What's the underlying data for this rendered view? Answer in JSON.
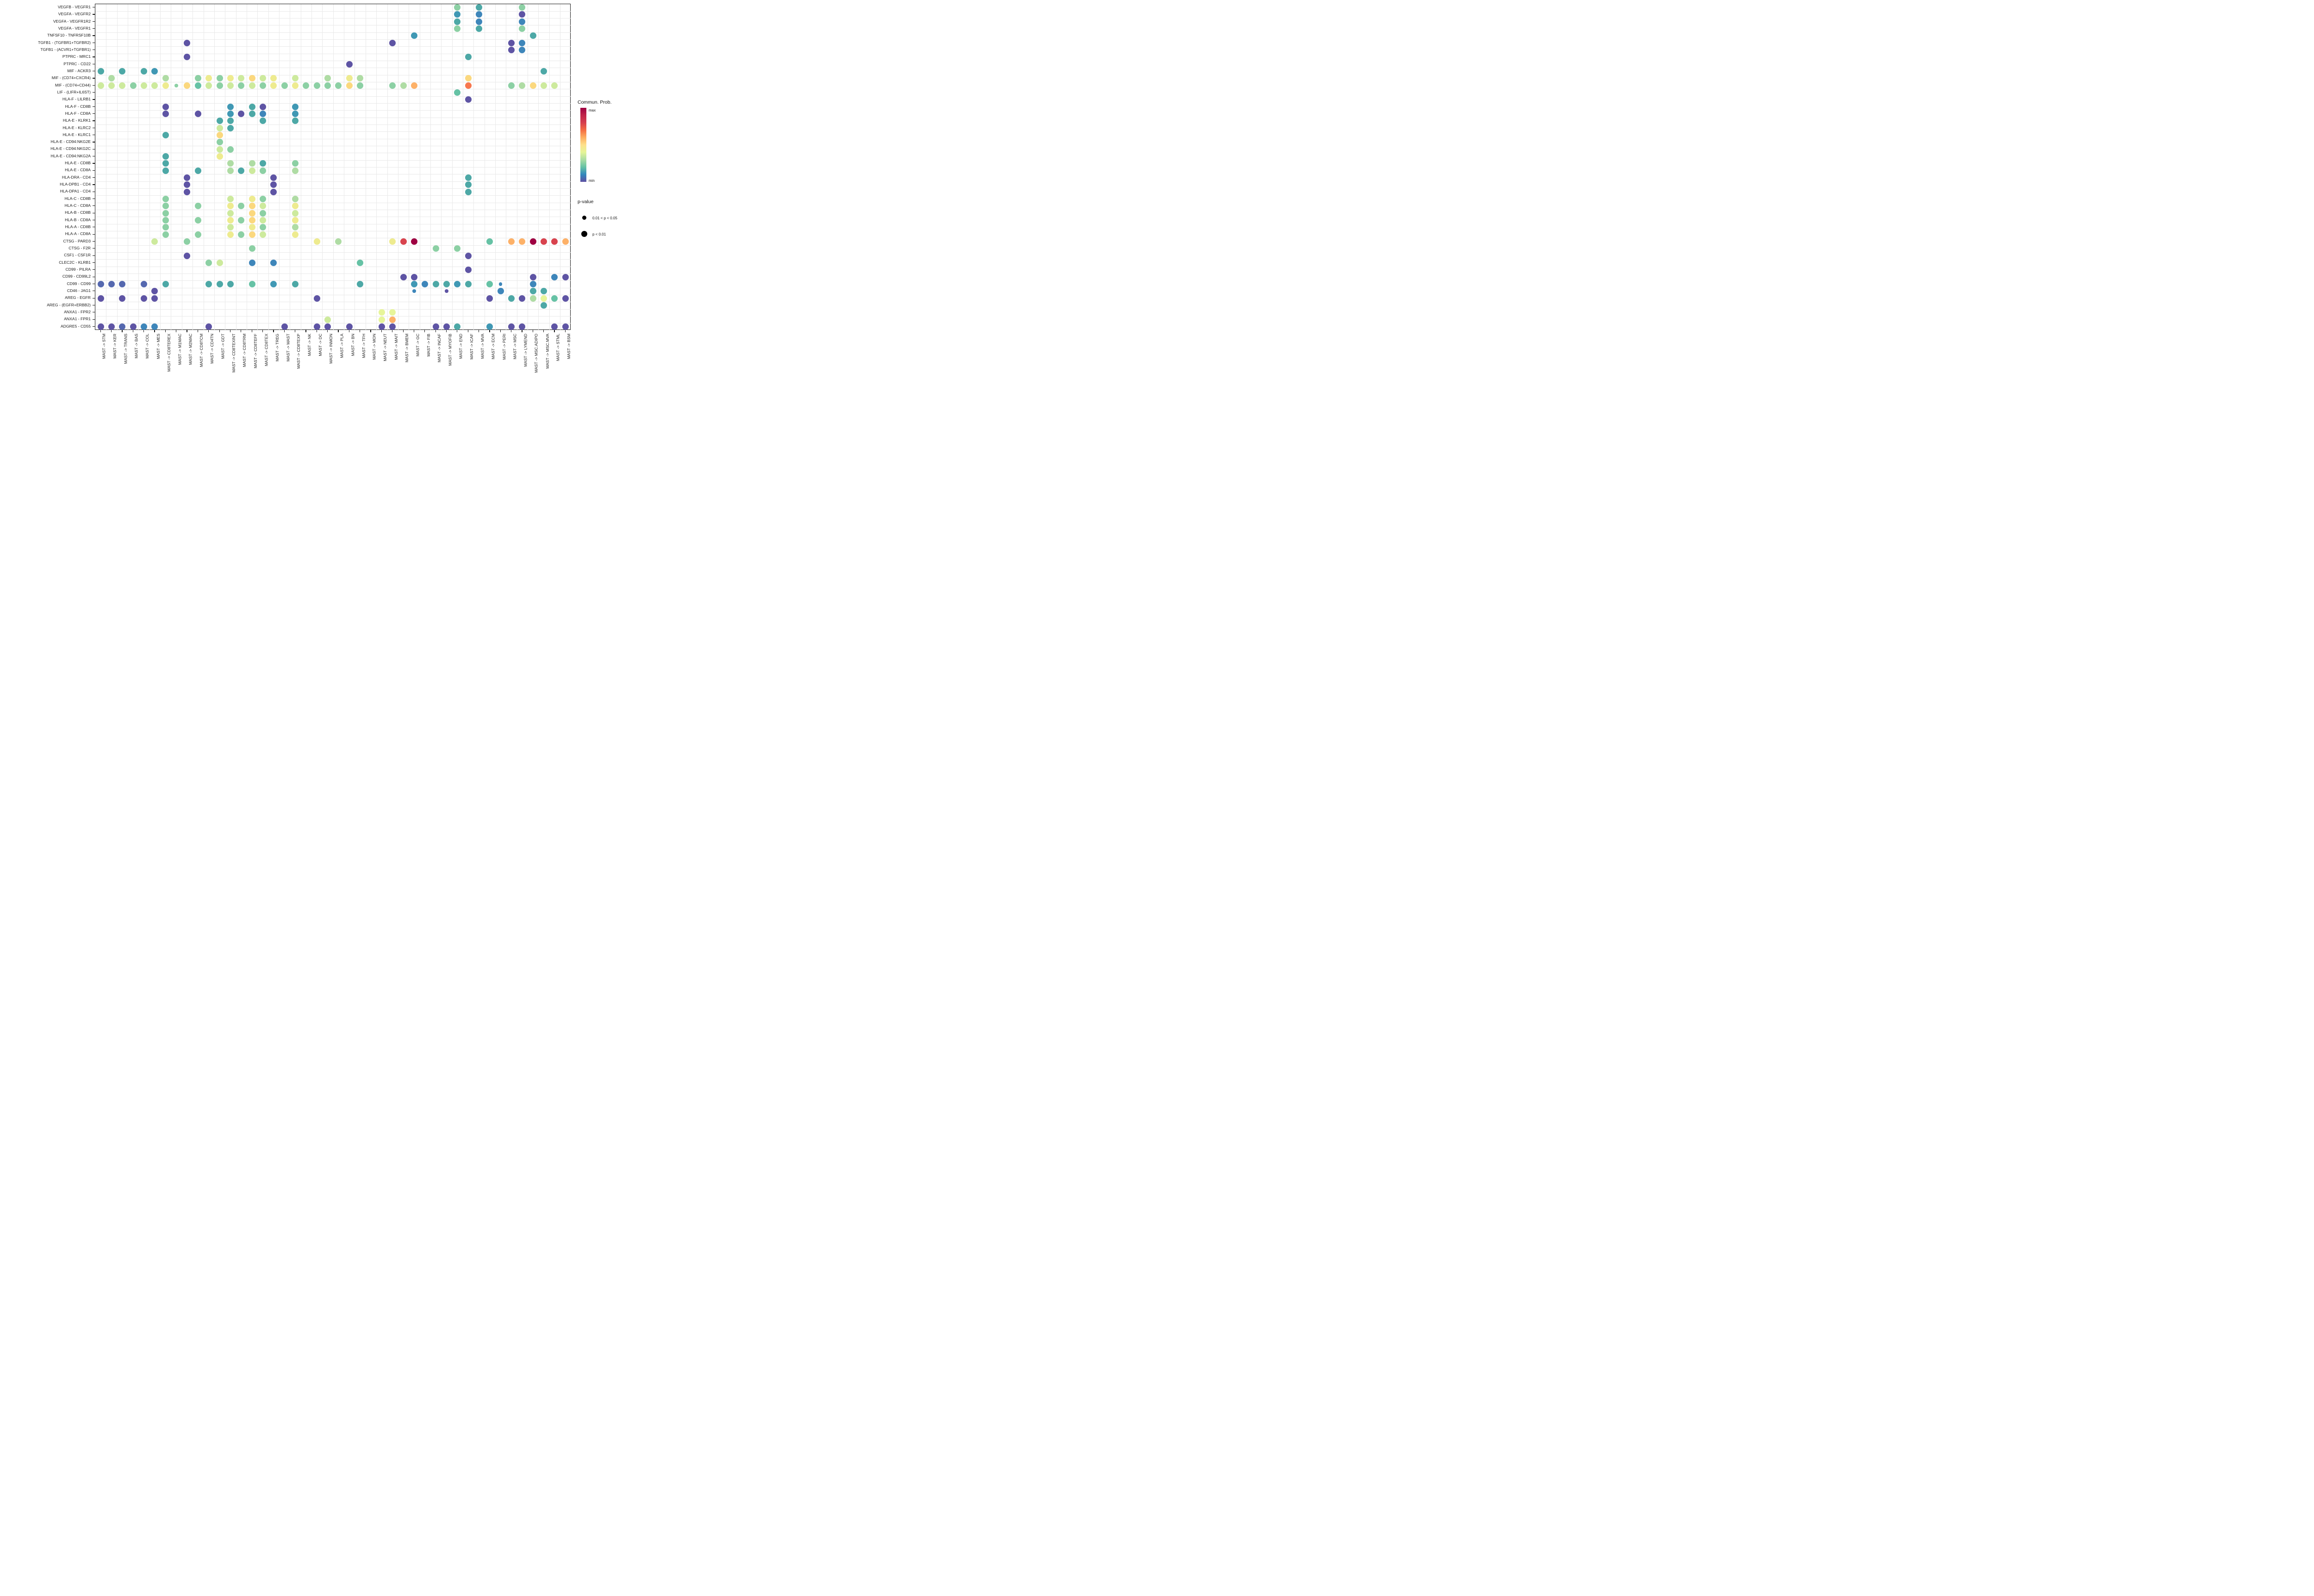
{
  "legend": {
    "color_title": "Commun. Prob.",
    "color_max": "max",
    "color_min": "min",
    "size_title": "p-value",
    "size_small_label": "0.01 < p < 0.05",
    "size_large_label": "p < 0.01"
  },
  "chart_data": {
    "type": "scatter",
    "subtype": "bubble-dotplot",
    "title": "",
    "xlabel": "",
    "ylabel": "",
    "grid": true,
    "legend_position": "right",
    "color_scale": {
      "name": "Spectral (reversed)",
      "min_color": "#5e4fa2",
      "max_color": "#9e0142",
      "min_label": "min",
      "max_label": "max"
    },
    "size_scale": {
      "small": "0.01 < p < 0.05",
      "large": "p < 0.01"
    },
    "palette": {
      "P": "#5e54a4",
      "PB": "#5568af",
      "B": "#3e86ba",
      "TB": "#4098b4",
      "T": "#4da8a6",
      "TG": "#66c2a5",
      "G": "#8cd0a4",
      "LG": "#afdca4",
      "YG": "#cdea9d",
      "PY": "#e7f59a",
      "Y": "#eeeb8f",
      "YO": "#fbd87e",
      "O": "#fdb168",
      "RO": "#f7774e",
      "R": "#d8434e",
      "CR": "#9e0142"
    },
    "y_categories": [
      "VEGFB - VEGFR1",
      "VEGFA - VEGFR2",
      "VEGFA - VEGFR1R2",
      "VEGFA - VEGFR1",
      "TNFSF10 - TNFRSF10B",
      "TGFB1 - (TGFBR1+TGFBR2)",
      "TGFB1 - (ACVR1+TGFBR1)",
      "PTPRC - MRC1",
      "PTPRC - CD22",
      "MIF - ACKR3",
      "MIF - (CD74+CXCR4)",
      "MIF - (CD74+CD44)",
      "LIF - (LIFR+IL6ST)",
      "HLA-F - LILRB1",
      "HLA-F - CD8B",
      "HLA-F - CD8A",
      "HLA-E - KLRK1",
      "HLA-E - KLRC2",
      "HLA-E - KLRC1",
      "HLA-E - CD94:NKG2E",
      "HLA-E - CD94:NKG2C",
      "HLA-E - CD94:NKG2A",
      "HLA-E - CD8B",
      "HLA-E - CD8A",
      "HLA-DRA - CD4",
      "HLA-DPB1 - CD4",
      "HLA-DPA1 - CD4",
      "HLA-C - CD8B",
      "HLA-C - CD8A",
      "HLA-B - CD8B",
      "HLA-B - CD8A",
      "HLA-A - CD8B",
      "HLA-A - CD8A",
      "CTSG - PARD3",
      "CTSG - F2R",
      "CSF1 - CSF1R",
      "CLEC2C - KLRB1",
      "CD99 - PILRA",
      "CD99 - CD99L2",
      "CD99 - CD99",
      "CD46 - JAG1",
      "AREG - EGFR",
      "AREG - (EGFR+ERBB2)",
      "ANXA1 - FPR2",
      "ANXA1 - FPR1",
      "ADGRE5 - CD55"
    ],
    "x_categories": [
      "MAST -> STM",
      "MAST -> KER",
      "MAST -> TRANS",
      "MAST -> BAS",
      "MAST -> COL",
      "MAST -> MES",
      "MAST -> CD8TEREX",
      "MAST -> M1MAC",
      "MAST -> M2MAC",
      "MAST -> CD8TCM",
      "MAST -> CD4TN",
      "MAST -> GDT",
      "MAST -> CD8TEXINT",
      "MAST -> CD8TRM",
      "MAST -> CD8TEFF",
      "MAST -> CD8TEX",
      "MAST -> TREG",
      "MAST -> MAST",
      "MAST -> CD8TEXP",
      "MAST -> NK",
      "MAST -> DC",
      "MAST -> INMON",
      "MAST -> PLA",
      "MAST -> BN",
      "MAST -> TFH",
      "MAST -> MON",
      "MAST -> NEUT",
      "MAST -> MAIT",
      "MAST -> BMEM",
      "MAST -> GC",
      "MAST -> FIB",
      "MAST -> INCAF",
      "MAST -> MYOFIB",
      "MAST -> END",
      "MAST -> ICAF",
      "MAST -> MVA",
      "MAST -> ECM",
      "MAST -> PERI",
      "MAST -> MSC",
      "MAST -> LYMEND",
      "MAST -> MSC.ADIPO",
      "MAST -> MSC.MVA",
      "MAST -> STML",
      "MAST -> BSM"
    ],
    "dots": [
      [
        1,
        34,
        "G"
      ],
      [
        1,
        36,
        "T"
      ],
      [
        1,
        40,
        "G"
      ],
      [
        2,
        34,
        "TB"
      ],
      [
        2,
        36,
        "B"
      ],
      [
        2,
        40,
        "P"
      ],
      [
        3,
        34,
        "T"
      ],
      [
        3,
        36,
        "B"
      ],
      [
        3,
        40,
        "B"
      ],
      [
        4,
        34,
        "G"
      ],
      [
        4,
        36,
        "T"
      ],
      [
        4,
        40,
        "G"
      ],
      [
        5,
        30,
        "TB"
      ],
      [
        5,
        41,
        "T"
      ],
      [
        6,
        9,
        "P"
      ],
      [
        6,
        28,
        "P"
      ],
      [
        6,
        39,
        "P"
      ],
      [
        6,
        40,
        "B"
      ],
      [
        7,
        39,
        "P"
      ],
      [
        7,
        40,
        "B"
      ],
      [
        8,
        9,
        "P"
      ],
      [
        8,
        35,
        "T"
      ],
      [
        9,
        24,
        "P"
      ],
      [
        10,
        1,
        "T"
      ],
      [
        10,
        3,
        "T"
      ],
      [
        10,
        5,
        "T"
      ],
      [
        10,
        6,
        "TB"
      ],
      [
        10,
        42,
        "T"
      ],
      [
        11,
        2,
        "LG"
      ],
      [
        11,
        7,
        "LG"
      ],
      [
        11,
        10,
        "G"
      ],
      [
        11,
        11,
        "Y"
      ],
      [
        11,
        12,
        "G"
      ],
      [
        11,
        13,
        "Y"
      ],
      [
        11,
        14,
        "YG"
      ],
      [
        11,
        15,
        "YO"
      ],
      [
        11,
        16,
        "YG"
      ],
      [
        11,
        17,
        "Y"
      ],
      [
        11,
        19,
        "YG"
      ],
      [
        11,
        22,
        "LG"
      ],
      [
        11,
        24,
        "Y"
      ],
      [
        11,
        25,
        "LG"
      ],
      [
        11,
        35,
        "YO"
      ],
      [
        12,
        1,
        "YG"
      ],
      [
        12,
        2,
        "YG"
      ],
      [
        12,
        3,
        "YG"
      ],
      [
        12,
        4,
        "G"
      ],
      [
        12,
        5,
        "YG"
      ],
      [
        12,
        6,
        "YG"
      ],
      [
        12,
        7,
        "Y"
      ],
      [
        12,
        8,
        "G",
        "s"
      ],
      [
        12,
        9,
        "YO"
      ],
      [
        12,
        10,
        "TG"
      ],
      [
        12,
        11,
        "YG"
      ],
      [
        12,
        12,
        "G"
      ],
      [
        12,
        13,
        "YG"
      ],
      [
        12,
        14,
        "G"
      ],
      [
        12,
        15,
        "YG"
      ],
      [
        12,
        16,
        "G"
      ],
      [
        12,
        17,
        "Y"
      ],
      [
        12,
        18,
        "G"
      ],
      [
        12,
        19,
        "Y"
      ],
      [
        12,
        20,
        "G"
      ],
      [
        12,
        21,
        "G"
      ],
      [
        12,
        22,
        "G"
      ],
      [
        12,
        23,
        "G"
      ],
      [
        12,
        24,
        "YO"
      ],
      [
        12,
        25,
        "G"
      ],
      [
        12,
        28,
        "G"
      ],
      [
        12,
        29,
        "LG"
      ],
      [
        12,
        30,
        "O"
      ],
      [
        12,
        35,
        "RO"
      ],
      [
        12,
        39,
        "G"
      ],
      [
        12,
        40,
        "LG"
      ],
      [
        12,
        41,
        "YO"
      ],
      [
        12,
        42,
        "YG"
      ],
      [
        12,
        43,
        "YG"
      ],
      [
        13,
        34,
        "TG"
      ],
      [
        14,
        35,
        "P"
      ],
      [
        15,
        7,
        "P"
      ],
      [
        15,
        13,
        "TB"
      ],
      [
        15,
        15,
        "T"
      ],
      [
        15,
        16,
        "P"
      ],
      [
        15,
        19,
        "TB"
      ],
      [
        16,
        7,
        "P"
      ],
      [
        16,
        10,
        "P"
      ],
      [
        16,
        13,
        "TB"
      ],
      [
        16,
        14,
        "P"
      ],
      [
        16,
        15,
        "T"
      ],
      [
        16,
        16,
        "B"
      ],
      [
        16,
        19,
        "TB"
      ],
      [
        17,
        12,
        "T"
      ],
      [
        17,
        13,
        "T"
      ],
      [
        17,
        16,
        "T"
      ],
      [
        17,
        19,
        "T"
      ],
      [
        18,
        12,
        "YG"
      ],
      [
        18,
        13,
        "T"
      ],
      [
        19,
        7,
        "T"
      ],
      [
        19,
        12,
        "YO"
      ],
      [
        20,
        12,
        "G"
      ],
      [
        21,
        12,
        "YG"
      ],
      [
        21,
        13,
        "G"
      ],
      [
        22,
        7,
        "T"
      ],
      [
        22,
        12,
        "Y"
      ],
      [
        23,
        7,
        "T"
      ],
      [
        23,
        13,
        "LG"
      ],
      [
        23,
        15,
        "LG"
      ],
      [
        23,
        16,
        "T"
      ],
      [
        23,
        19,
        "G"
      ],
      [
        24,
        7,
        "T"
      ],
      [
        24,
        10,
        "T"
      ],
      [
        24,
        13,
        "LG"
      ],
      [
        24,
        14,
        "T"
      ],
      [
        24,
        15,
        "YG"
      ],
      [
        24,
        16,
        "G"
      ],
      [
        24,
        19,
        "LG"
      ],
      [
        25,
        9,
        "P"
      ],
      [
        25,
        17,
        "P"
      ],
      [
        25,
        35,
        "T"
      ],
      [
        26,
        9,
        "P"
      ],
      [
        26,
        17,
        "P"
      ],
      [
        26,
        35,
        "T"
      ],
      [
        27,
        9,
        "P"
      ],
      [
        27,
        17,
        "P"
      ],
      [
        27,
        35,
        "T"
      ],
      [
        28,
        7,
        "G"
      ],
      [
        28,
        13,
        "YG"
      ],
      [
        28,
        15,
        "Y"
      ],
      [
        28,
        16,
        "G"
      ],
      [
        28,
        19,
        "LG"
      ],
      [
        29,
        7,
        "G"
      ],
      [
        29,
        10,
        "G"
      ],
      [
        29,
        13,
        "Y"
      ],
      [
        29,
        14,
        "G"
      ],
      [
        29,
        15,
        "YO"
      ],
      [
        29,
        16,
        "YG"
      ],
      [
        29,
        19,
        "Y"
      ],
      [
        30,
        7,
        "G"
      ],
      [
        30,
        13,
        "YG"
      ],
      [
        30,
        15,
        "YO"
      ],
      [
        30,
        16,
        "G"
      ],
      [
        30,
        19,
        "YG"
      ],
      [
        31,
        7,
        "G"
      ],
      [
        31,
        10,
        "G"
      ],
      [
        31,
        13,
        "Y"
      ],
      [
        31,
        14,
        "G"
      ],
      [
        31,
        15,
        "YO"
      ],
      [
        31,
        16,
        "YG"
      ],
      [
        31,
        19,
        "Y"
      ],
      [
        32,
        7,
        "G"
      ],
      [
        32,
        13,
        "YG"
      ],
      [
        32,
        15,
        "Y"
      ],
      [
        32,
        16,
        "G"
      ],
      [
        32,
        19,
        "LG"
      ],
      [
        33,
        7,
        "G"
      ],
      [
        33,
        10,
        "G"
      ],
      [
        33,
        13,
        "Y"
      ],
      [
        33,
        14,
        "G"
      ],
      [
        33,
        15,
        "YO"
      ],
      [
        33,
        16,
        "YG"
      ],
      [
        33,
        19,
        "Y"
      ],
      [
        34,
        6,
        "YG"
      ],
      [
        34,
        9,
        "G"
      ],
      [
        34,
        21,
        "Y"
      ],
      [
        34,
        23,
        "LG"
      ],
      [
        34,
        28,
        "Y"
      ],
      [
        34,
        29,
        "R"
      ],
      [
        34,
        30,
        "CR"
      ],
      [
        34,
        37,
        "TG"
      ],
      [
        34,
        39,
        "O"
      ],
      [
        34,
        40,
        "O"
      ],
      [
        34,
        41,
        "CR"
      ],
      [
        34,
        42,
        "R"
      ],
      [
        34,
        43,
        "R"
      ],
      [
        34,
        44,
        "O"
      ],
      [
        35,
        15,
        "G"
      ],
      [
        35,
        32,
        "G"
      ],
      [
        35,
        34,
        "G"
      ],
      [
        36,
        9,
        "P"
      ],
      [
        36,
        35,
        "P"
      ],
      [
        37,
        11,
        "G"
      ],
      [
        37,
        12,
        "YG"
      ],
      [
        37,
        15,
        "B"
      ],
      [
        37,
        17,
        "B"
      ],
      [
        37,
        25,
        "TG"
      ],
      [
        38,
        35,
        "P"
      ],
      [
        39,
        29,
        "P"
      ],
      [
        39,
        30,
        "P"
      ],
      [
        39,
        41,
        "P"
      ],
      [
        39,
        43,
        "B"
      ],
      [
        39,
        44,
        "P"
      ],
      [
        40,
        1,
        "PB"
      ],
      [
        40,
        2,
        "PB"
      ],
      [
        40,
        3,
        "PB"
      ],
      [
        40,
        5,
        "PB"
      ],
      [
        40,
        7,
        "T"
      ],
      [
        40,
        11,
        "T"
      ],
      [
        40,
        12,
        "T"
      ],
      [
        40,
        13,
        "T"
      ],
      [
        40,
        15,
        "TG"
      ],
      [
        40,
        17,
        "TB"
      ],
      [
        40,
        19,
        "T"
      ],
      [
        40,
        25,
        "T"
      ],
      [
        40,
        30,
        "TB"
      ],
      [
        40,
        31,
        "B"
      ],
      [
        40,
        32,
        "T"
      ],
      [
        40,
        33,
        "T"
      ],
      [
        40,
        34,
        "TB"
      ],
      [
        40,
        35,
        "T"
      ],
      [
        40,
        37,
        "TG"
      ],
      [
        40,
        38,
        "B",
        "s"
      ],
      [
        40,
        41,
        "B"
      ],
      [
        41,
        6,
        "P"
      ],
      [
        41,
        30,
        "B",
        "s"
      ],
      [
        41,
        33,
        "P",
        "s"
      ],
      [
        41,
        38,
        "B"
      ],
      [
        41,
        41,
        "T"
      ],
      [
        41,
        42,
        "T"
      ],
      [
        42,
        1,
        "P"
      ],
      [
        42,
        3,
        "P"
      ],
      [
        42,
        5,
        "P"
      ],
      [
        42,
        6,
        "P"
      ],
      [
        42,
        21,
        "P"
      ],
      [
        42,
        37,
        "P"
      ],
      [
        42,
        39,
        "T"
      ],
      [
        42,
        40,
        "P"
      ],
      [
        42,
        41,
        "LG"
      ],
      [
        42,
        42,
        "PY"
      ],
      [
        42,
        43,
        "TG"
      ],
      [
        42,
        44,
        "P"
      ],
      [
        43,
        42,
        "T"
      ],
      [
        44,
        27,
        "PY"
      ],
      [
        44,
        28,
        "PY"
      ],
      [
        45,
        22,
        "YG"
      ],
      [
        45,
        27,
        "PY"
      ],
      [
        45,
        28,
        "O"
      ],
      [
        46,
        1,
        "P"
      ],
      [
        46,
        2,
        "P"
      ],
      [
        46,
        3,
        "PB"
      ],
      [
        46,
        4,
        "P"
      ],
      [
        46,
        5,
        "B"
      ],
      [
        46,
        6,
        "B"
      ],
      [
        46,
        11,
        "P"
      ],
      [
        46,
        18,
        "P"
      ],
      [
        46,
        21,
        "P"
      ],
      [
        46,
        22,
        "P"
      ],
      [
        46,
        24,
        "P"
      ],
      [
        46,
        27,
        "P"
      ],
      [
        46,
        28,
        "P"
      ],
      [
        46,
        32,
        "P"
      ],
      [
        46,
        33,
        "P"
      ],
      [
        46,
        34,
        "T"
      ],
      [
        46,
        37,
        "TB"
      ],
      [
        46,
        39,
        "P"
      ],
      [
        46,
        40,
        "P"
      ],
      [
        46,
        43,
        "P"
      ],
      [
        46,
        44,
        "P"
      ]
    ]
  }
}
